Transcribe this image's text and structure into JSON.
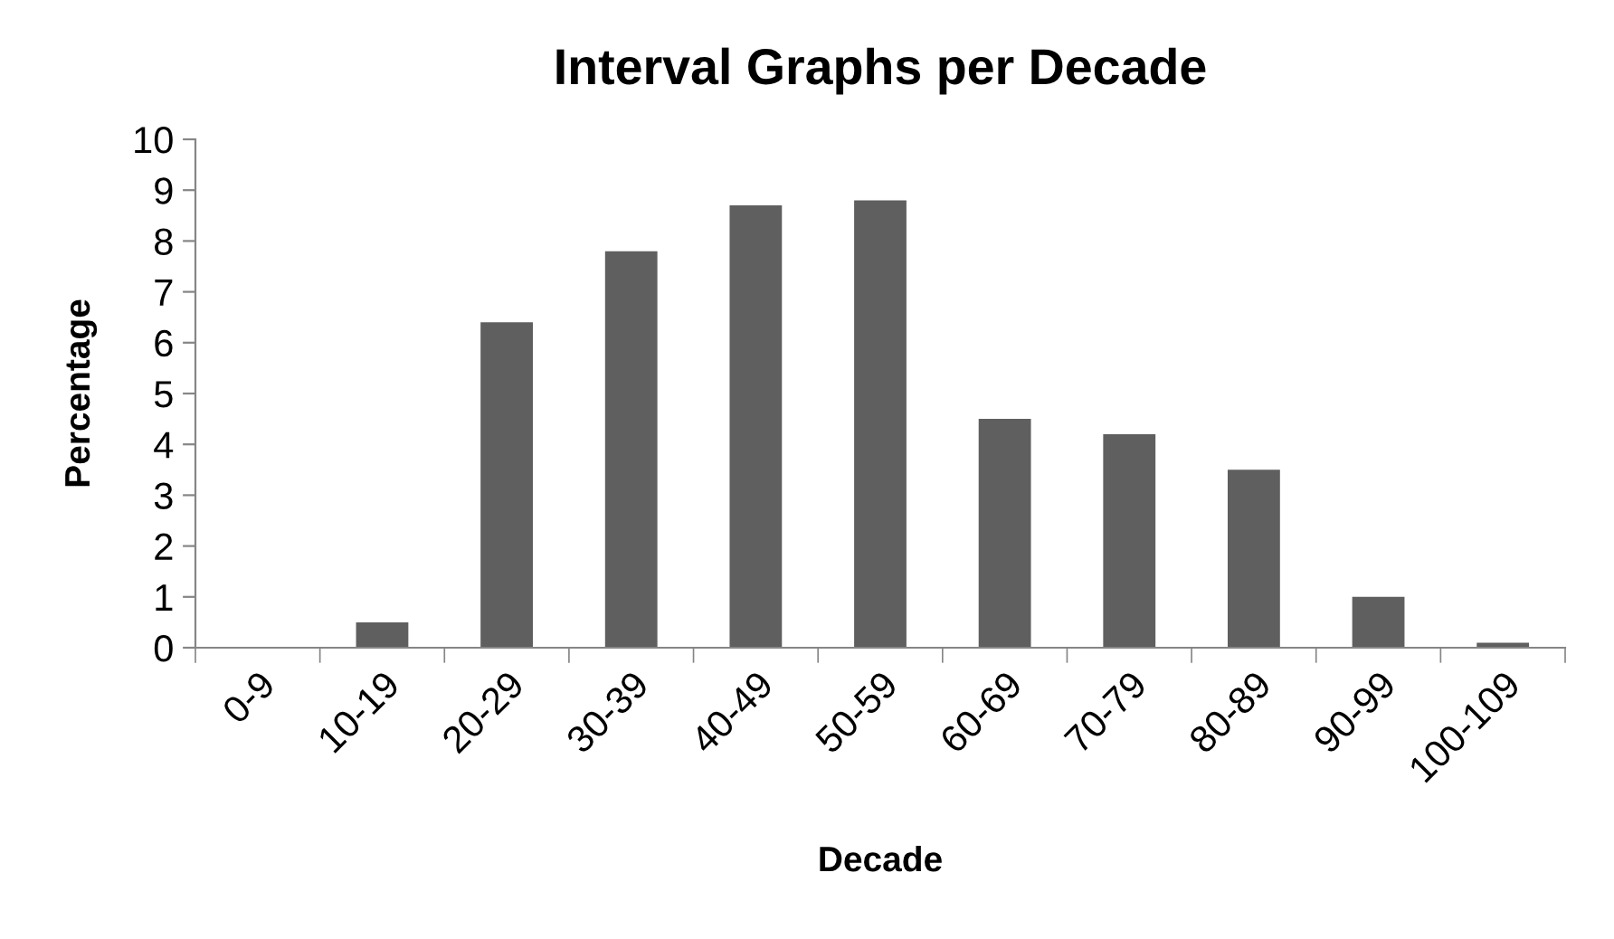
{
  "chart_data": {
    "type": "bar",
    "title": "Interval Graphs per Decade",
    "xlabel": "Decade",
    "ylabel": "Percentage",
    "categories": [
      "0-9",
      "10-19",
      "20-29",
      "30-39",
      "40-49",
      "50-59",
      "60-69",
      "70-79",
      "80-89",
      "90-99",
      "100-109"
    ],
    "values": [
      0,
      0.5,
      6.4,
      7.8,
      8.7,
      8.8,
      4.5,
      4.2,
      3.5,
      1.0,
      0.1
    ],
    "color": "#5f5f5f",
    "ylim": [
      0,
      10
    ],
    "yticks": [
      0,
      1,
      2,
      3,
      4,
      5,
      6,
      7,
      8,
      9,
      10
    ],
    "grid": false,
    "legend": false
  }
}
